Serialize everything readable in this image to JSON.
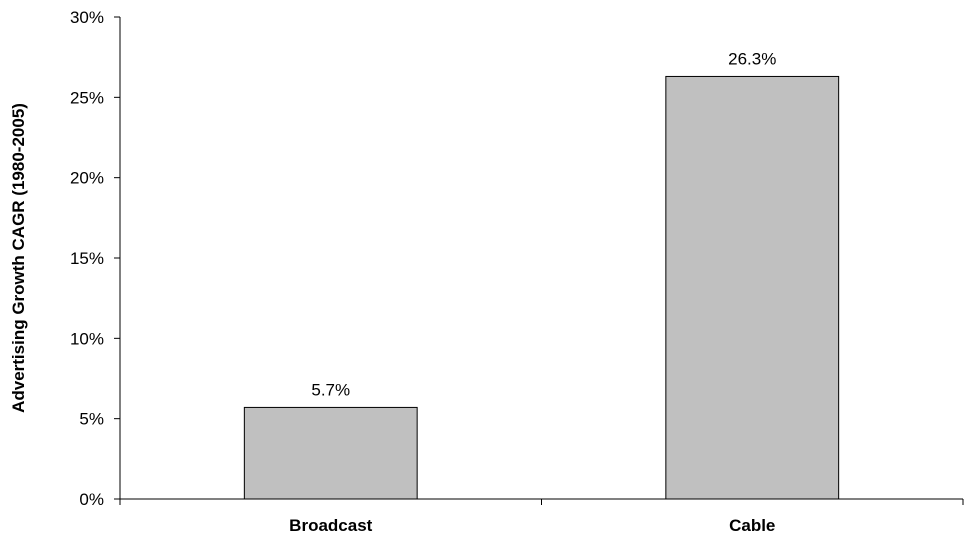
{
  "chart_data": {
    "type": "bar",
    "categories": [
      "Broadcast",
      "Cable"
    ],
    "values": [
      5.7,
      26.3
    ],
    "data_labels": [
      "5.7%",
      "26.3%"
    ],
    "title": "",
    "xlabel": "",
    "ylabel": "Advertising Growth CAGR (1980-2005)",
    "ylim": [
      0,
      30
    ],
    "yticks": [
      0,
      5,
      10,
      15,
      20,
      25,
      30
    ],
    "ytick_labels": [
      "0%",
      "5%",
      "10%",
      "15%",
      "20%",
      "25%",
      "30%"
    ],
    "grid": false,
    "legend": "none",
    "bar_color": "#c0c0c0"
  }
}
